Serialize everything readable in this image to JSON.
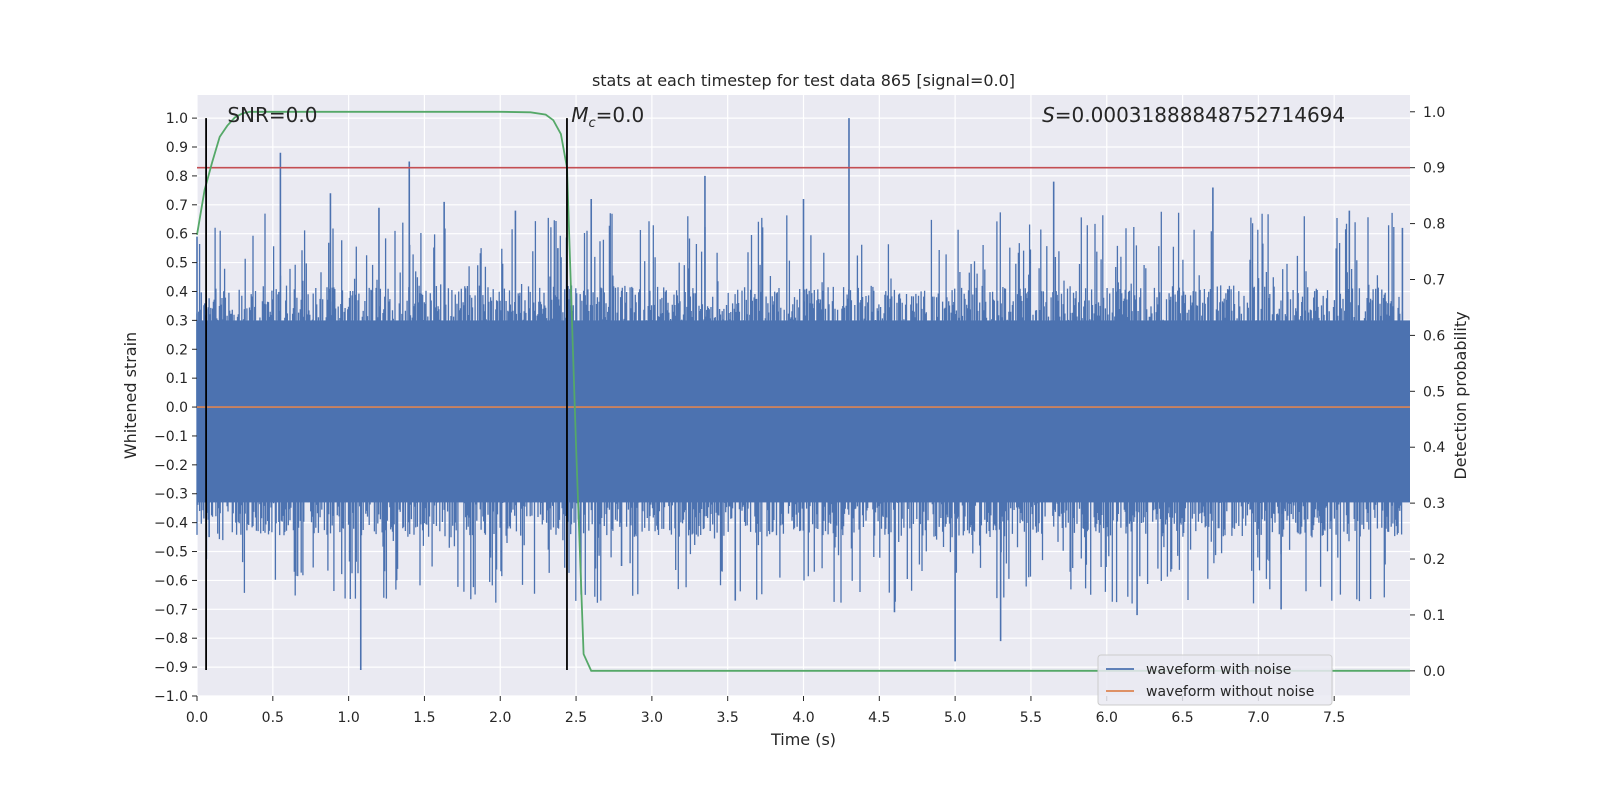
{
  "chart_data": {
    "type": "line",
    "title": "stats at each timestep for test data 865 [signal=0.0]",
    "xlabel": "Time (s)",
    "ylabel": "Whitened strain",
    "y2label": "Detection probability",
    "xlim": [
      0.0,
      8.0
    ],
    "ylim": [
      -1.0,
      1.08
    ],
    "y2lim": [
      -0.045,
      1.03
    ],
    "x_ticks": [
      0.0,
      0.5,
      1.0,
      1.5,
      2.0,
      2.5,
      3.0,
      3.5,
      4.0,
      4.5,
      5.0,
      5.5,
      6.0,
      6.5,
      7.0,
      7.5
    ],
    "x_tick_labels": [
      "0.0",
      "0.5",
      "1.0",
      "1.5",
      "2.0",
      "2.5",
      "3.0",
      "3.5",
      "4.0",
      "4.5",
      "5.0",
      "5.5",
      "6.0",
      "6.5",
      "7.0",
      "7.5"
    ],
    "y_ticks": [
      -1.0,
      -0.9,
      -0.8,
      -0.7,
      -0.6,
      -0.5,
      -0.4,
      -0.3,
      -0.2,
      -0.1,
      0.0,
      0.1,
      0.2,
      0.3,
      0.4,
      0.5,
      0.6,
      0.7,
      0.8,
      0.9,
      1.0
    ],
    "y_tick_labels": [
      "−1.0",
      "−0.9",
      "−0.8",
      "−0.7",
      "−0.6",
      "−0.5",
      "−0.4",
      "−0.3",
      "−0.2",
      "−0.1",
      "0.0",
      "0.1",
      "0.2",
      "0.3",
      "0.4",
      "0.5",
      "0.6",
      "0.7",
      "0.8",
      "0.9",
      "1.0"
    ],
    "y2_ticks": [
      0.0,
      0.1,
      0.2,
      0.3,
      0.4,
      0.5,
      0.6,
      0.7,
      0.8,
      0.9,
      1.0
    ],
    "y2_tick_labels": [
      "0.0",
      "0.1",
      "0.2",
      "0.3",
      "0.4",
      "0.5",
      "0.6",
      "0.7",
      "0.8",
      "0.9",
      "1.0"
    ],
    "grid": true,
    "legend_position": "bottom-right",
    "series": [
      {
        "name": "waveform with noise",
        "axis": "left",
        "color": "#4c72b0",
        "description_note": "dense noise trace",
        "x": [
          0.0,
          0.08,
          0.55,
          0.88,
          1.08,
          1.2,
          1.4,
          1.63,
          2.1,
          2.38,
          2.6,
          2.8,
          3.35,
          3.55,
          4.0,
          4.3,
          4.6,
          5.0,
          5.3,
          5.65,
          6.2,
          6.7,
          7.15,
          7.6,
          7.95
        ],
        "values": [
          0.59,
          -0.45,
          0.88,
          0.74,
          -0.91,
          0.69,
          0.85,
          0.71,
          0.68,
          0.55,
          0.72,
          -0.55,
          0.8,
          -0.67,
          0.72,
          1.0,
          -0.71,
          -0.88,
          -0.81,
          0.78,
          -0.72,
          0.76,
          -0.7,
          0.68,
          0.62
        ],
        "typical_range": [
          -0.45,
          0.42
        ]
      },
      {
        "name": "waveform without noise",
        "axis": "left",
        "color": "#dd8452",
        "x": [
          0.0,
          8.0
        ],
        "values": [
          0.0,
          0.0
        ]
      },
      {
        "name": "",
        "axis": "right",
        "color": "#55a868",
        "x": [
          0.0,
          0.05,
          0.1,
          0.15,
          0.2,
          0.25,
          0.3,
          0.35,
          0.4,
          0.5,
          1.0,
          1.5,
          2.0,
          2.2,
          2.3,
          2.35,
          2.4,
          2.44,
          2.5,
          2.55,
          2.6,
          2.65,
          2.7,
          8.0
        ],
        "values": [
          0.78,
          0.86,
          0.91,
          0.955,
          0.975,
          0.99,
          0.997,
          1.0,
          1.0,
          1.0,
          1.0,
          1.0,
          1.0,
          0.999,
          0.995,
          0.985,
          0.96,
          0.9,
          0.4,
          0.03,
          0.0,
          0.0,
          0.0,
          0.0
        ]
      }
    ],
    "threshold": {
      "color": "#c44e52",
      "y2_value": 0.9
    },
    "vlines": {
      "color": "#000000",
      "x": [
        0.06,
        2.44
      ],
      "y_range": [
        -0.91,
        1.0
      ]
    },
    "annotations": [
      {
        "text": "SNR=0.0",
        "x": 0.2
      },
      {
        "text": "S=0.000318888487527146940",
        "x": 5.6
      }
    ],
    "mc_annotation": {
      "prefix": "M",
      "sub": "c",
      "suffix": "=0.0",
      "x": 2.6
    },
    "s_annotation": {
      "italic": "S",
      "rest": "=0.00031888848752714694",
      "x": 5.6
    },
    "snr_annotation": {
      "text": "SNR=0.0",
      "x": 0.2
    },
    "legend": [
      "waveform with noise",
      "waveform without noise"
    ]
  }
}
